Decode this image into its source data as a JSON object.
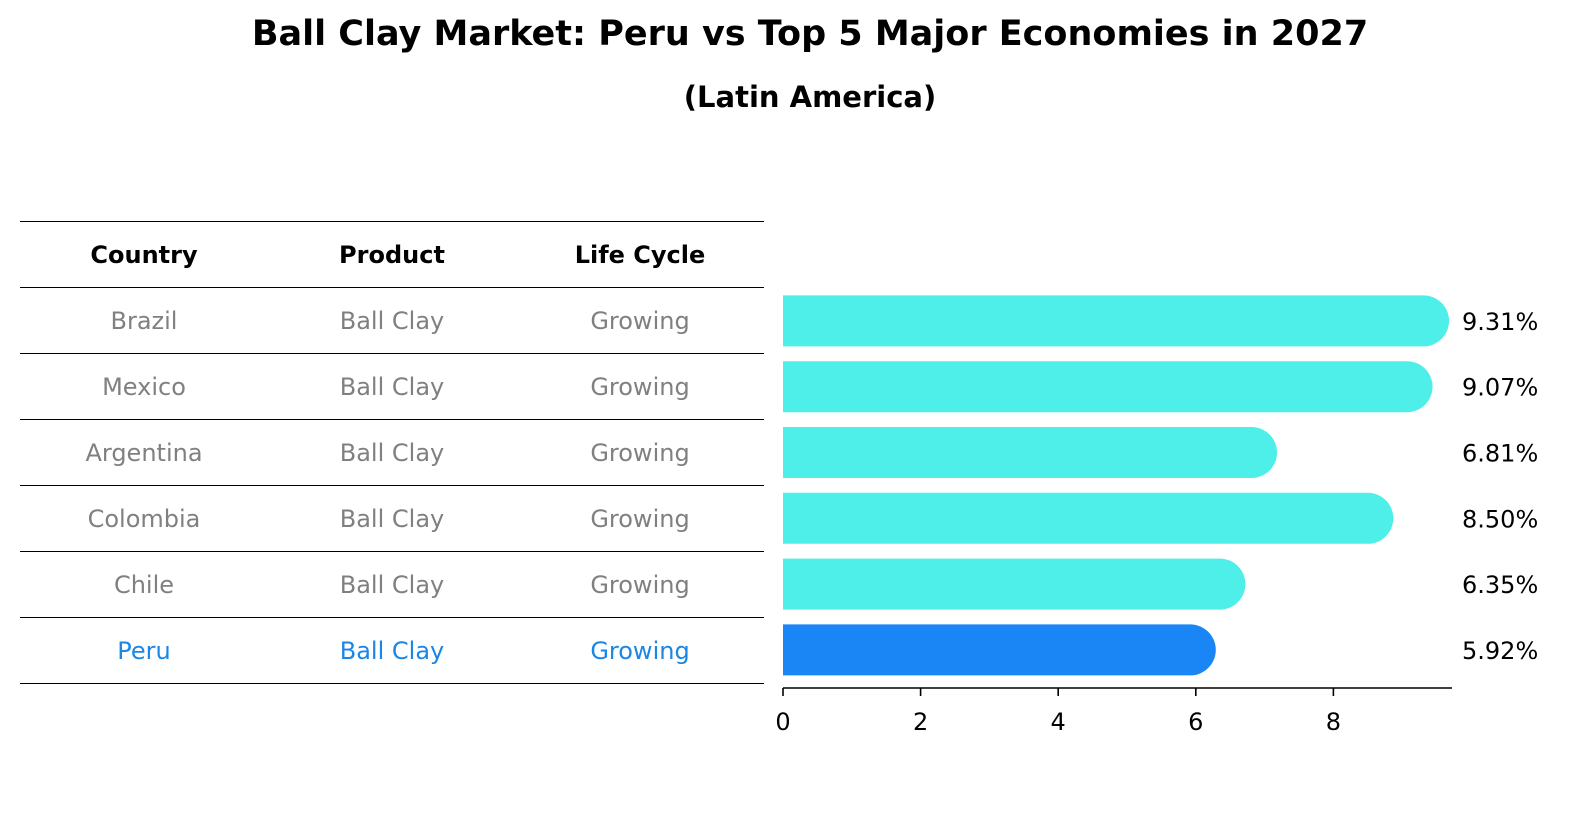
{
  "title": "Ball Clay Market: Peru vs Top 5 Major Economies in 2027",
  "subtitle": "(Latin America)",
  "table": {
    "headers": [
      "Country",
      "Product",
      "Life Cycle"
    ],
    "rows": [
      {
        "country": "Brazil",
        "product": "Ball Clay",
        "life_cycle": "Growing"
      },
      {
        "country": "Mexico",
        "product": "Ball Clay",
        "life_cycle": "Growing"
      },
      {
        "country": "Argentina",
        "product": "Ball Clay",
        "life_cycle": "Growing"
      },
      {
        "country": "Colombia",
        "product": "Ball Clay",
        "life_cycle": "Growing"
      },
      {
        "country": "Chile",
        "product": "Ball Clay",
        "life_cycle": "Growing"
      },
      {
        "country": "Peru",
        "product": "Ball Clay",
        "life_cycle": "Growing"
      }
    ]
  },
  "chart_data": {
    "type": "bar",
    "orientation": "horizontal",
    "title": "Ball Clay Market: Peru vs Top 5 Major Economies in 2027",
    "subtitle": "(Latin America)",
    "categories": [
      "Brazil",
      "Mexico",
      "Argentina",
      "Colombia",
      "Chile",
      "Peru"
    ],
    "values": [
      9.31,
      9.07,
      6.81,
      8.5,
      6.35,
      5.92
    ],
    "value_labels": [
      "9.31%",
      "9.07%",
      "6.81%",
      "8.50%",
      "6.35%",
      "5.92%"
    ],
    "highlight_category": "Peru",
    "xlim": [
      0,
      9.8
    ],
    "xticks": [
      0,
      2,
      4,
      6,
      8
    ],
    "xtick_labels": [
      "0",
      "2",
      "4",
      "6",
      "8"
    ],
    "grid": false,
    "colors": {
      "bar": "#4eeee9",
      "highlight_bar": "#1a86f5",
      "highlight_text": "#1a86e6",
      "muted_text": "#808080"
    }
  }
}
